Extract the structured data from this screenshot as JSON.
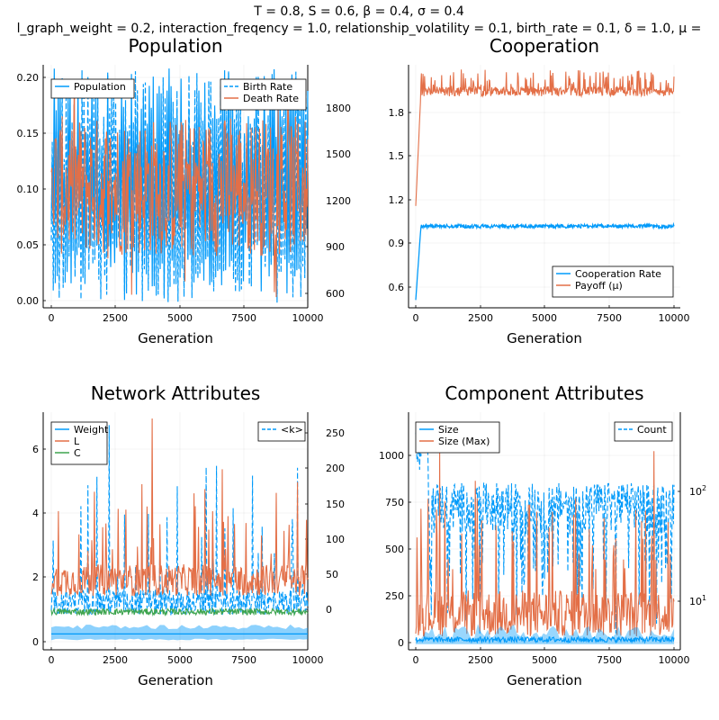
{
  "figure": {
    "suptitle_line1": "T = 0.8, S = 0.6, β = 0.4, σ = 0.4",
    "suptitle_line2": "l_graph_weight = 0.2, interaction_freqency = 1.0, relationship_volatility = 0.1, birth_rate = 0.1, δ = 1.0, μ =",
    "colors": {
      "blue": "#009AFA",
      "orange": "#E36F47",
      "green": "#3EA44E"
    }
  },
  "chart_data": [
    {
      "id": "population",
      "type": "line",
      "title": "Population",
      "xlabel": "Generation",
      "ylabel": "",
      "xlim": [
        0,
        10000
      ],
      "xticks": [
        "0",
        "2500",
        "5000",
        "7500",
        "10000"
      ],
      "ylim": [
        -0.004,
        0.204
      ],
      "yticks": [
        "0.00",
        "0.05",
        "0.10",
        "0.15",
        "0.20"
      ],
      "y2lim": [
        530,
        2000
      ],
      "y2ticks": [
        "600",
        "900",
        "1200",
        "1500",
        "1800"
      ],
      "legend_left": [
        "Population"
      ],
      "legend_right": [
        "Birth Rate",
        "Death Rate"
      ],
      "series": [
        {
          "name": "Birth Rate",
          "axis": "left",
          "color": "blue",
          "style": "dashed",
          "band": [
            0.0,
            0.2
          ],
          "mean": 0.1
        },
        {
          "name": "Death Rate",
          "axis": "left",
          "color": "orange",
          "style": "solid",
          "band": [
            0.02,
            0.17
          ],
          "mean": 0.1
        },
        {
          "name": "Population",
          "axis": "right",
          "color": "blue",
          "style": "solid",
          "band": [
            580,
            1980
          ],
          "mean": 1300
        }
      ]
    },
    {
      "id": "cooperation",
      "type": "line",
      "title": "Cooperation",
      "xlabel": "Generation",
      "ylabel": "",
      "xlim": [
        0,
        10000
      ],
      "xticks": [
        "0",
        "2500",
        "5000",
        "7500",
        "10000"
      ],
      "ylim": [
        0.45,
        2.0
      ],
      "yticks": [
        "0.6",
        "0.9",
        "1.2",
        "1.5",
        "1.8"
      ],
      "legend": [
        "Cooperation Rate",
        "Payoff (μ)"
      ],
      "series": [
        {
          "name": "Cooperation Rate",
          "color": "blue",
          "start": 0.5,
          "plateau": 0.97,
          "noise": 0.012
        },
        {
          "name": "Payoff (μ)",
          "color": "orange",
          "start": 1.1,
          "plateau": 1.83,
          "noise": 0.03,
          "spike_max": 1.97
        }
      ]
    },
    {
      "id": "network",
      "type": "line",
      "title": "Network Attributes",
      "xlabel": "Generation",
      "ylabel": "",
      "xlim": [
        0,
        10000
      ],
      "xticks": [
        "0",
        "2500",
        "5000",
        "7500",
        "10000"
      ],
      "ylim": [
        -0.3,
        7.2
      ],
      "yticks": [
        "0",
        "2",
        "4",
        "6"
      ],
      "y2lim": [
        -5,
        270
      ],
      "y2ticks": [
        "0",
        "50",
        "100",
        "150",
        "200",
        "250"
      ],
      "legend_left": [
        "Weight",
        "L",
        "C"
      ],
      "legend_right": [
        "<k>"
      ],
      "series": [
        {
          "name": "Weight",
          "axis": "left",
          "color": "blue",
          "mean": 0.2,
          "band": [
            0.05,
            0.4
          ]
        },
        {
          "name": "L",
          "axis": "left",
          "color": "orange",
          "base": 1.8,
          "spike_max": 7.0
        },
        {
          "name": "C",
          "axis": "left",
          "color": "green",
          "mean": 0.9,
          "noise": 0.1
        },
        {
          "name": "<k>",
          "axis": "right",
          "color": "blue",
          "style": "dashed",
          "base": 40,
          "spike_max": 255
        }
      ]
    },
    {
      "id": "component",
      "type": "line",
      "title": "Component Attributes",
      "xlabel": "Generation",
      "ylabel": "",
      "xlim": [
        0,
        10000
      ],
      "xticks": [
        "0",
        "2500",
        "5000",
        "7500",
        "10000"
      ],
      "ylim": [
        -30,
        1250
      ],
      "yticks": [
        "0",
        "250",
        "500",
        "750",
        "1000"
      ],
      "y2scale": "log",
      "y2ticks": [
        "10",
        "10"
      ],
      "y2tick_exponents": [
        "1",
        "2"
      ],
      "legend_left": [
        "Size",
        "Size (Max)"
      ],
      "legend_right": [
        "Count"
      ],
      "series": [
        {
          "name": "Size",
          "axis": "left",
          "color": "blue",
          "mean": 20,
          "band": [
            0,
            100
          ]
        },
        {
          "name": "Size (Max)",
          "axis": "left",
          "color": "orange",
          "base": 150,
          "spike_max": 1040
        },
        {
          "name": "Count",
          "axis": "right",
          "color": "blue",
          "style": "dashed",
          "range": [
            20,
            450
          ]
        }
      ]
    }
  ]
}
